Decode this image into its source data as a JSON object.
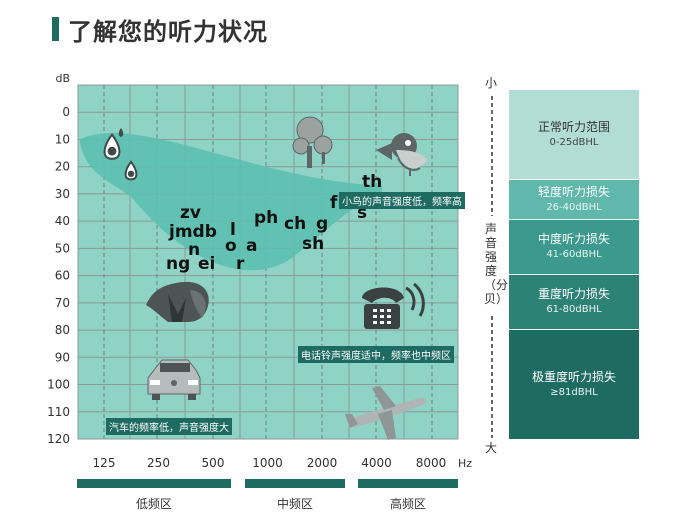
{
  "title": "了解您的听力状况",
  "chart_data": {
    "type": "audiogram",
    "y_unit": "dB",
    "y_ticks": [
      "0",
      "10",
      "20",
      "30",
      "40",
      "50",
      "60",
      "70",
      "80",
      "90",
      "100",
      "110",
      "120"
    ],
    "ylim": [
      -10,
      120
    ],
    "y_inverted": true,
    "x_unit": "Hz",
    "x_ticks": [
      "125",
      "250",
      "500",
      "1000",
      "2000",
      "4000",
      "8000"
    ],
    "x_scale": "log",
    "grid": true,
    "bands": [
      {
        "label": "低频区"
      },
      {
        "label": "中频区"
      },
      {
        "label": "高频区"
      }
    ],
    "annotations": [
      {
        "text": "小鸟的声音强度低，频率高"
      },
      {
        "text": "电话铃声强度适中，频率也中频区"
      },
      {
        "text": "汽车的频率低，声音强度大"
      }
    ],
    "phonemes": [
      "zv",
      "jmdb",
      "l",
      "n",
      "o",
      "a",
      "ng",
      "ei",
      "r",
      "ph",
      "ch",
      "g",
      "sh",
      "f",
      "s",
      "th"
    ],
    "icons": [
      "water-drop-icon",
      "tree-icon",
      "bird-icon",
      "dog-icon",
      "telephone-icon",
      "car-icon",
      "airplane-icon"
    ],
    "loudness_axis": {
      "top": "小",
      "bottom": "大",
      "label": "声音强度（分贝）"
    },
    "levels": [
      {
        "name": "正常听力范围",
        "range": "0-25dBHL",
        "color": "#b2ddd6"
      },
      {
        "name": "轻度听力损失",
        "range": "26-40dBHL",
        "color": "#5fb8ab"
      },
      {
        "name": "中度听力损失",
        "range": "41-60dBHL",
        "color": "#3b9a8d"
      },
      {
        "name": "重度听力损失",
        "range": "61-80dBHL",
        "color": "#2d8276"
      },
      {
        "name": "极重度听力损失",
        "range": "≥81dBHL",
        "color": "#1e6b62"
      }
    ],
    "colors": {
      "plot_bg": "#8fd3c6",
      "banana": "#5cbfb0",
      "accent": "#1e6b62",
      "grid": "#8a9b98"
    }
  }
}
